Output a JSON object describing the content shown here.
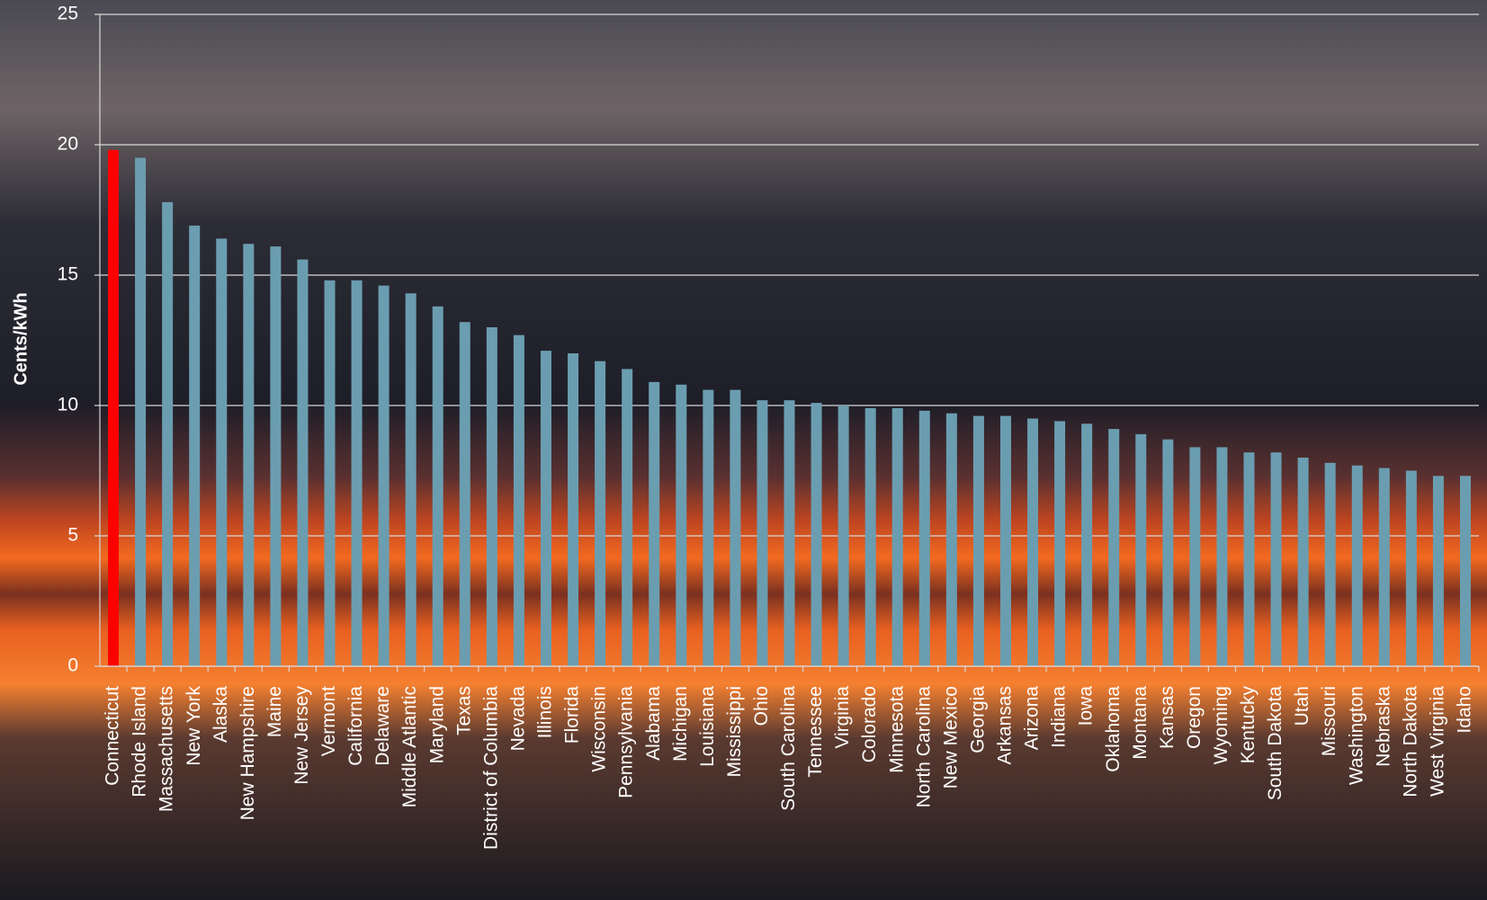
{
  "chart_data": {
    "type": "bar",
    "y_label": "Cents/kWh",
    "categories": [
      "Connecticut",
      "Rhode Island",
      "Massachusetts",
      "New York",
      "Alaska",
      "New Hampshire",
      "Maine",
      "New Jersey",
      "Vermont",
      "California",
      "Delaware",
      "Middle Atlantic",
      "Maryland",
      "Texas",
      "District of Columbia",
      "Nevada",
      "Illinois",
      "Florida",
      "Wisconsin",
      "Pennsylvania",
      "Alabama",
      "Michigan",
      "Louisiana",
      "Mississippi",
      "Ohio",
      "South Carolina",
      "Tennessee",
      "Virginia",
      "Colorado",
      "Minnesota",
      "North Carolina",
      "New Mexico",
      "Georgia",
      "Arkansas",
      "Arizona",
      "Indiana",
      "Iowa",
      "Oklahoma",
      "Montana",
      "Kansas",
      "Oregon",
      "Wyoming",
      "Kentucky",
      "South Dakota",
      "Utah",
      "Missouri",
      "Washington",
      "Nebraska",
      "North Dakota",
      "West Virginia",
      "Idaho"
    ],
    "values": [
      19.8,
      19.5,
      17.8,
      16.9,
      16.4,
      16.2,
      16.1,
      15.6,
      14.8,
      14.8,
      14.6,
      14.3,
      13.8,
      13.2,
      13.0,
      12.7,
      12.1,
      12.0,
      11.7,
      11.4,
      10.9,
      10.8,
      10.6,
      10.6,
      10.2,
      10.2,
      10.1,
      10.0,
      9.9,
      9.9,
      9.8,
      9.7,
      9.6,
      9.6,
      9.5,
      9.4,
      9.3,
      9.1,
      8.9,
      8.7,
      8.4,
      8.4,
      8.2,
      8.2,
      8.0,
      7.8,
      7.7,
      7.6,
      7.5,
      7.3,
      7.3
    ],
    "colors": [
      "#ff0000",
      "#6b9db0",
      "#6b9db0",
      "#6b9db0",
      "#6b9db0",
      "#6b9db0",
      "#6b9db0",
      "#6b9db0",
      "#6b9db0",
      "#6b9db0",
      "#6b9db0",
      "#6b9db0",
      "#6b9db0",
      "#6b9db0",
      "#6b9db0",
      "#6b9db0",
      "#6b9db0",
      "#6b9db0",
      "#6b9db0",
      "#6b9db0",
      "#6b9db0",
      "#6b9db0",
      "#6b9db0",
      "#6b9db0",
      "#6b9db0",
      "#6b9db0",
      "#6b9db0",
      "#6b9db0",
      "#6b9db0",
      "#6b9db0",
      "#6b9db0",
      "#6b9db0",
      "#6b9db0",
      "#6b9db0",
      "#6b9db0",
      "#6b9db0",
      "#6b9db0",
      "#6b9db0",
      "#6b9db0",
      "#6b9db0",
      "#6b9db0",
      "#6b9db0",
      "#6b9db0",
      "#6b9db0",
      "#6b9db0",
      "#6b9db0",
      "#6b9db0",
      "#6b9db0",
      "#6b9db0",
      "#6b9db0",
      "#6b9db0"
    ],
    "ylim": [
      0,
      25
    ],
    "yticks": [
      0,
      5,
      10,
      15,
      20,
      25
    ],
    "grid": true
  }
}
